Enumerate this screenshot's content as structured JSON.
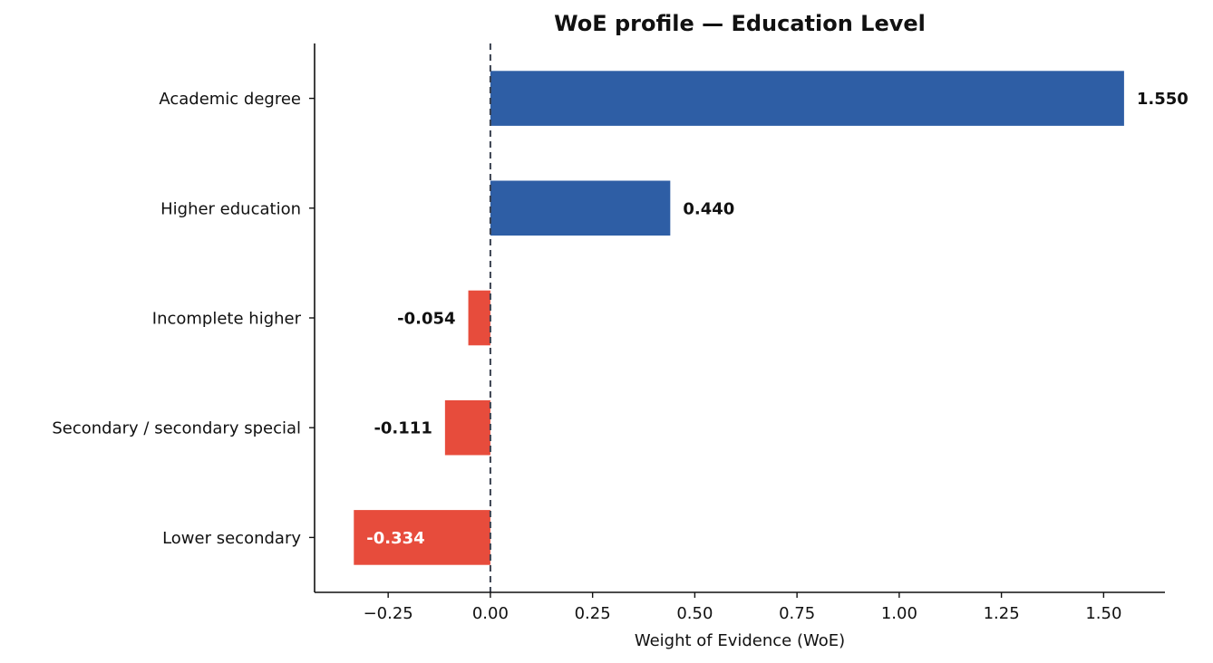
{
  "chart_data": {
    "type": "bar",
    "orientation": "horizontal",
    "title": "WoE profile — Education Level",
    "xlabel": "Weight of Evidence (WoE)",
    "ylabel": "",
    "categories": [
      "Academic degree",
      "Higher education",
      "Incomplete higher",
      "Secondary / secondary special",
      "Lower secondary"
    ],
    "values": [
      1.55,
      0.44,
      -0.054,
      -0.111,
      -0.334
    ],
    "value_labels": [
      "1.550",
      "0.440",
      "-0.054",
      "-0.111",
      "-0.334"
    ],
    "xlim": [
      -0.43,
      1.65
    ],
    "xticks": [
      -0.25,
      0.0,
      0.25,
      0.5,
      0.75,
      1.0,
      1.25,
      1.5
    ],
    "xtick_labels": [
      "−0.25",
      "0.00",
      "0.25",
      "0.50",
      "0.75",
      "1.00",
      "1.25",
      "1.50"
    ],
    "zero_line": "dashed",
    "grid": false,
    "colors": {
      "positive": "#2e5ea5",
      "negative": "#e74c3c",
      "zero_line": "#3a4250"
    }
  }
}
